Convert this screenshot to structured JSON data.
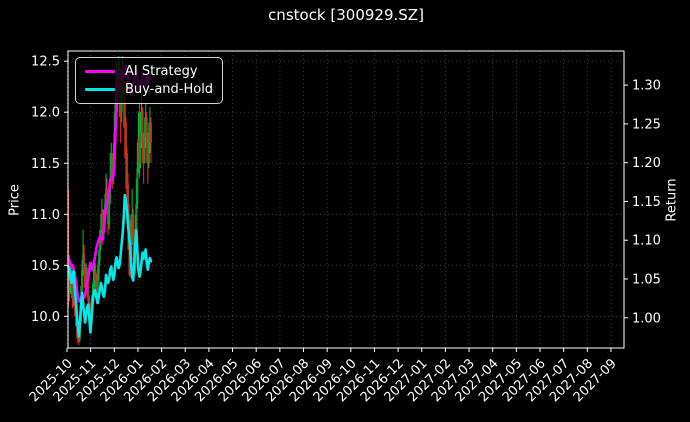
{
  "figure": {
    "background": "#000000",
    "text_color": "#ffffff"
  },
  "chart_data": {
    "type": "candlestick+line",
    "title": "cnstock [300929.SZ]",
    "left_axis": {
      "label": "Price",
      "ticks": [
        10.0,
        10.5,
        11.0,
        11.5,
        12.0,
        12.5
      ],
      "range": [
        9.69,
        12.6
      ]
    },
    "right_axis": {
      "label": "Return",
      "ticks": [
        1.0,
        1.05,
        1.1,
        1.15,
        1.2,
        1.25,
        1.3
      ],
      "range": [
        0.961,
        1.344
      ]
    },
    "x_axis": {
      "tick_labels": [
        "2025-10",
        "2025-11",
        "2025-12",
        "2026-01",
        "2026-02",
        "2026-03",
        "2026-04",
        "2026-05",
        "2026-06",
        "2026-07",
        "2026-08",
        "2026-09",
        "2026-10",
        "2026-11",
        "2026-12",
        "2027-01",
        "2027-02",
        "2027-03",
        "2027-04",
        "2027-05",
        "2027-06",
        "2027-07",
        "2027-08",
        "2027-09"
      ],
      "label_rotation_deg": 45,
      "data_start_month": 0.06,
      "data_end_month": 3.55
    },
    "grid": {
      "show": true,
      "style": "dotted",
      "color": "#4d4d4d"
    },
    "legend": {
      "position": "upper-left",
      "border_color": "#d4d4d4",
      "background": "rgba(0,0,0,0.8)"
    },
    "candles": {
      "up_wick_color": "#00c93c",
      "up_body_color": "#1f9032",
      "down_wick_color": "#ff2a1a",
      "down_body_color": "#b03a22",
      "open": [
        10.55,
        10.45,
        10.3,
        10.42,
        10.3,
        10.2,
        10.28,
        10.15,
        10.05,
        9.92,
        9.85,
        9.78,
        9.95,
        10.2,
        10.45,
        10.6,
        10.45,
        10.3,
        10.42,
        10.3,
        10.15,
        10.05,
        9.98,
        10.1,
        10.22,
        10.35,
        10.45,
        10.35,
        10.25,
        10.4,
        10.55,
        10.7,
        10.85,
        11.0,
        10.82,
        10.95,
        11.1,
        11.25,
        11.1,
        10.9,
        11.15,
        11.35,
        11.5,
        11.4,
        11.55,
        11.8,
        12.1,
        12.35,
        12.2,
        12.45,
        12.3,
        12.0,
        12.25,
        12.45,
        12.2,
        11.9,
        11.6,
        11.3,
        11.0,
        10.7,
        10.5,
        10.75,
        11.0,
        10.7,
        10.45,
        10.8,
        11.1,
        11.45,
        11.75,
        11.5,
        11.8,
        12.0,
        11.7,
        11.5,
        11.75,
        11.95,
        11.7,
        11.5,
        11.7,
        11.9
      ],
      "high": [
        11.25,
        10.6,
        10.52,
        10.48,
        10.38,
        10.38,
        10.32,
        10.2,
        10.1,
        9.98,
        9.92,
        10.05,
        10.3,
        10.55,
        10.85,
        10.7,
        10.52,
        10.52,
        10.48,
        10.35,
        10.2,
        10.12,
        10.2,
        10.32,
        10.45,
        10.6,
        10.52,
        10.42,
        10.5,
        10.65,
        10.85,
        11.0,
        11.15,
        11.05,
        11.05,
        11.2,
        11.4,
        11.35,
        11.15,
        11.25,
        11.6,
        11.7,
        11.6,
        11.7,
        12.0,
        12.3,
        12.5,
        12.42,
        12.55,
        12.5,
        12.35,
        12.4,
        12.55,
        12.5,
        12.25,
        11.95,
        11.65,
        11.4,
        11.1,
        10.95,
        11.0,
        11.25,
        11.05,
        10.85,
        11.0,
        11.35,
        11.7,
        12.0,
        12.1,
        12.0,
        12.2,
        12.05,
        11.8,
        11.95,
        12.1,
        12.0,
        11.8,
        11.9,
        12.05,
        11.95
      ],
      "low": [
        10.1,
        10.15,
        10.22,
        10.18,
        10.08,
        10.1,
        10.0,
        9.9,
        9.78,
        9.74,
        9.72,
        9.75,
        9.95,
        10.18,
        10.4,
        10.28,
        10.18,
        10.22,
        10.18,
        10.05,
        9.95,
        9.88,
        9.95,
        10.05,
        10.18,
        10.28,
        10.22,
        10.12,
        10.2,
        10.35,
        10.5,
        10.65,
        10.82,
        10.7,
        10.75,
        10.88,
        11.05,
        11.0,
        10.8,
        10.85,
        11.1,
        11.3,
        11.25,
        11.3,
        11.5,
        11.75,
        12.05,
        12.0,
        12.15,
        11.95,
        11.7,
        11.9,
        12.15,
        11.85,
        11.55,
        11.25,
        10.95,
        10.65,
        10.4,
        10.38,
        10.45,
        10.7,
        10.55,
        10.38,
        10.42,
        10.75,
        11.05,
        11.4,
        11.35,
        11.45,
        11.65,
        11.5,
        11.3,
        11.55,
        11.65,
        11.5,
        11.3,
        11.45,
        11.6,
        11.5
      ],
      "close": [
        10.45,
        10.3,
        10.42,
        10.3,
        10.2,
        10.28,
        10.15,
        10.05,
        9.92,
        9.85,
        9.78,
        9.95,
        10.2,
        10.45,
        10.6,
        10.45,
        10.3,
        10.42,
        10.3,
        10.15,
        10.05,
        9.98,
        10.1,
        10.22,
        10.35,
        10.45,
        10.35,
        10.25,
        10.4,
        10.55,
        10.7,
        10.85,
        11.0,
        10.82,
        10.95,
        11.1,
        11.25,
        11.1,
        10.9,
        11.15,
        11.35,
        11.5,
        11.4,
        11.55,
        11.8,
        12.1,
        12.35,
        12.2,
        12.45,
        12.3,
        12.0,
        12.25,
        12.45,
        12.2,
        11.9,
        11.6,
        11.3,
        11.0,
        10.7,
        10.5,
        10.75,
        11.0,
        10.7,
        10.45,
        10.8,
        11.1,
        11.45,
        11.75,
        11.5,
        11.8,
        12.0,
        11.7,
        11.5,
        11.75,
        11.95,
        11.7,
        11.5,
        11.7,
        11.9,
        11.7
      ]
    },
    "series": [
      {
        "name": "AI Strategy",
        "color": "#ff00ff",
        "axis": "right",
        "values": [
          1.077,
          1.074,
          1.07,
          1.066,
          1.068,
          1.062,
          1.057,
          1.048,
          1.038,
          1.028,
          1.021,
          1.022,
          1.025,
          1.02,
          1.024,
          1.027,
          1.03,
          1.038,
          1.045,
          1.053,
          1.062,
          1.071,
          1.065,
          1.062,
          1.068,
          1.075,
          1.083,
          1.091,
          1.096,
          1.1,
          1.104,
          1.102,
          1.1,
          1.106,
          1.115,
          1.13,
          1.144,
          1.15,
          1.152,
          1.165,
          1.178,
          1.18,
          1.18,
          1.182,
          1.2,
          1.235,
          1.272,
          1.3,
          1.315,
          1.322,
          1.318,
          1.31,
          1.305,
          1.312,
          1.318,
          1.325,
          1.318,
          1.308,
          1.3,
          1.293,
          1.287,
          1.292,
          1.3,
          1.308,
          1.315,
          1.32,
          1.31,
          1.3,
          1.292,
          1.298,
          1.306,
          1.312,
          1.303,
          1.297,
          1.306,
          1.313,
          1.304,
          1.308,
          1.311,
          1.308
        ]
      },
      {
        "name": "Buy-and-Hold",
        "color": "#00e8e8",
        "axis": "right",
        "values": [
          1.066,
          1.062,
          1.05,
          1.045,
          1.055,
          1.06,
          1.04,
          1.023,
          1.005,
          0.988,
          0.976,
          0.992,
          1.015,
          1.032,
          1.02,
          1.005,
          0.994,
          1.005,
          1.014,
          1.017,
          1.0,
          0.981,
          0.996,
          1.015,
          1.03,
          1.036,
          1.032,
          1.025,
          1.019,
          1.026,
          1.036,
          1.045,
          1.04,
          1.03,
          1.027,
          1.036,
          1.055,
          1.05,
          1.045,
          1.05,
          1.062,
          1.066,
          1.055,
          1.049,
          1.055,
          1.07,
          1.078,
          1.072,
          1.064,
          1.068,
          1.082,
          1.096,
          1.11,
          1.13,
          1.158,
          1.15,
          1.14,
          1.12,
          1.105,
          1.092,
          1.07,
          1.052,
          1.048,
          1.07,
          1.095,
          1.113,
          1.085,
          1.062,
          1.053,
          1.06,
          1.072,
          1.084,
          1.076,
          1.082,
          1.088,
          1.07,
          1.062,
          1.072,
          1.077,
          1.073
        ]
      }
    ]
  }
}
